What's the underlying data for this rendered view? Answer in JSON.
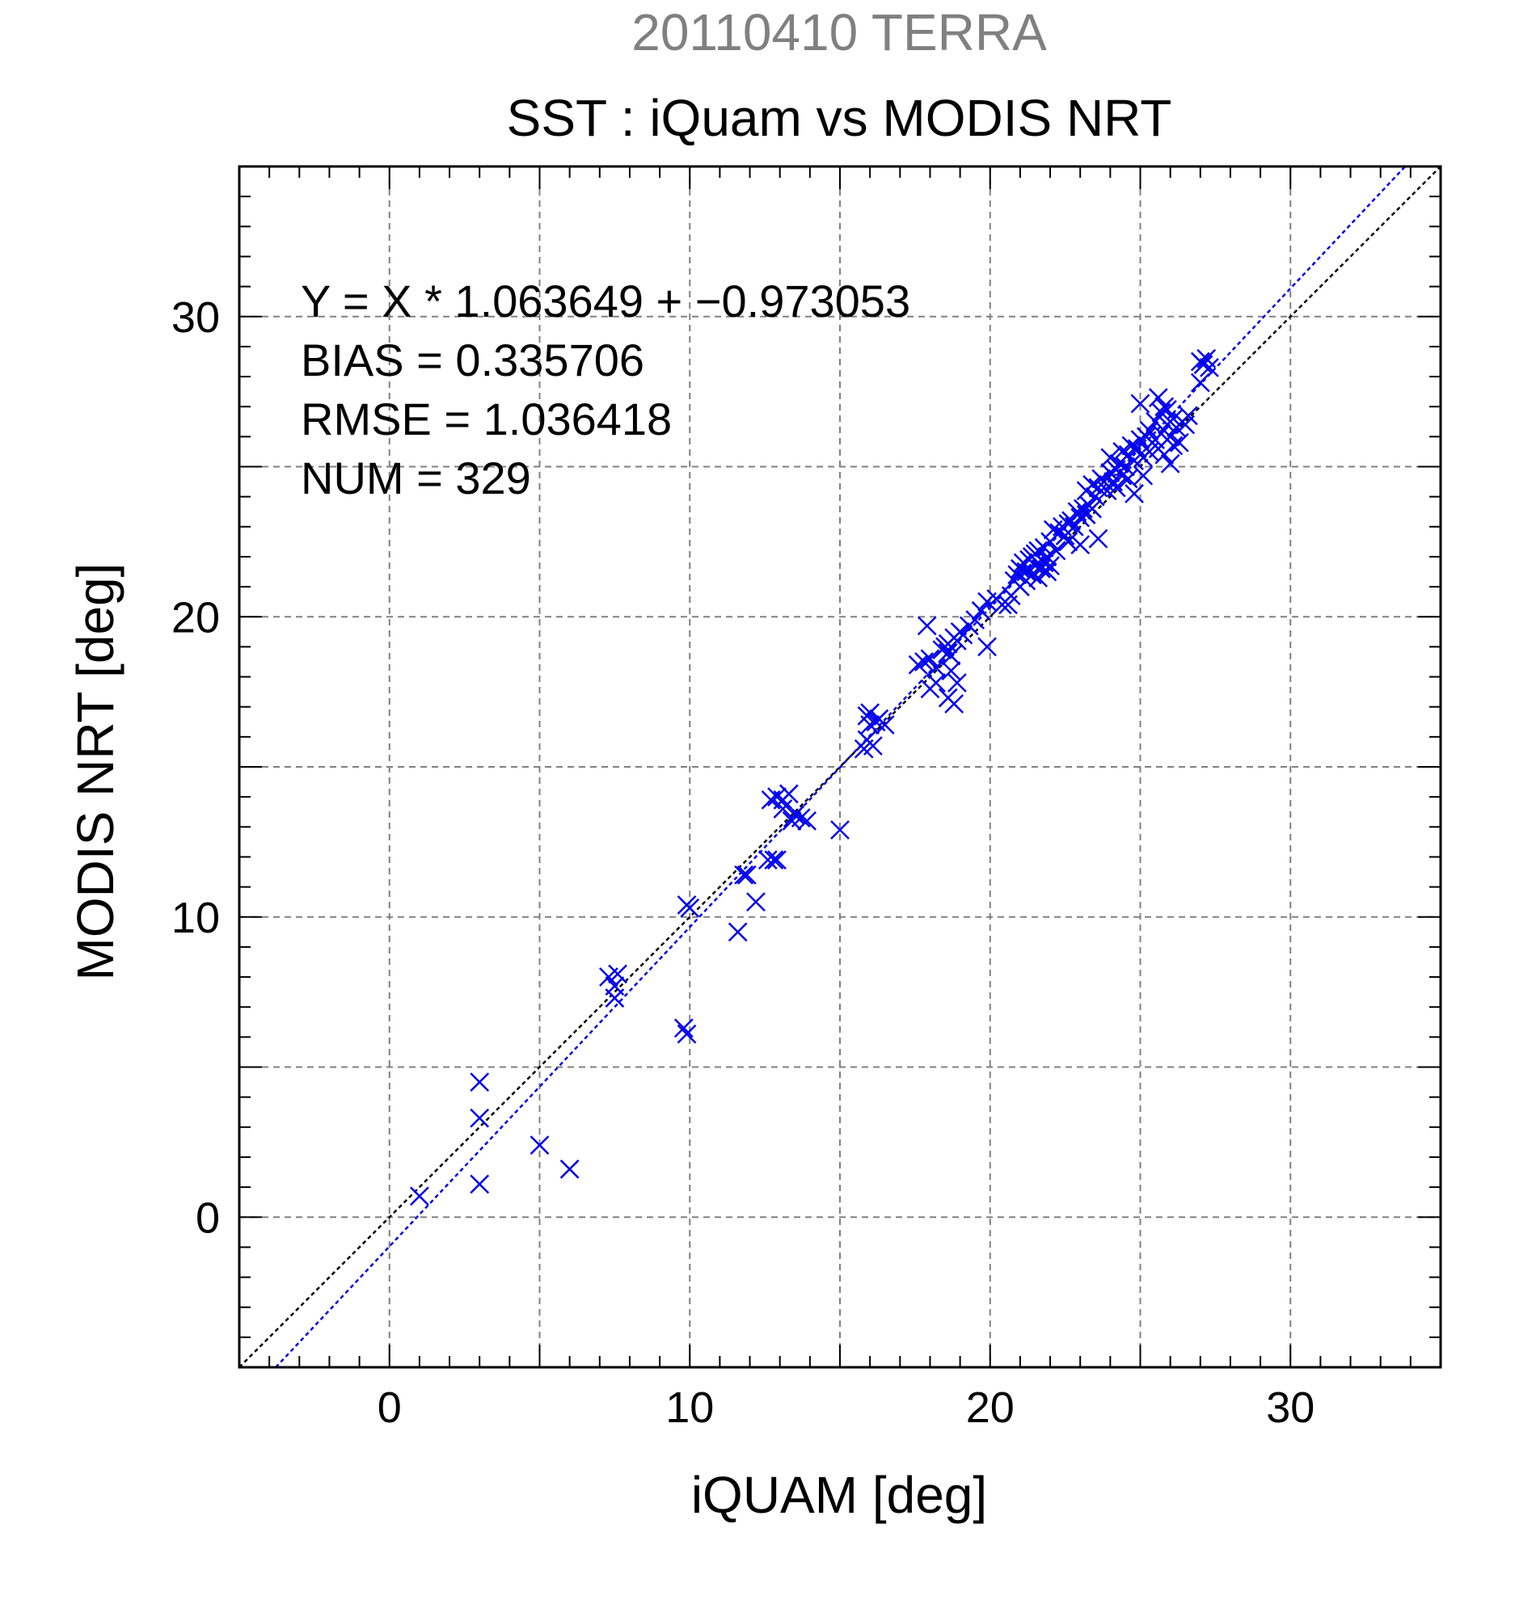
{
  "chart_data": {
    "type": "scatter",
    "supertitle": "20110410 TERRA",
    "title": "SST : iQuam vs MODIS NRT",
    "xlabel": "iQUAM [deg]",
    "ylabel": "MODIS NRT [deg]",
    "xlim": [
      -5,
      35
    ],
    "ylim": [
      -5,
      35
    ],
    "xticks": [
      0,
      10,
      20,
      30
    ],
    "yticks": [
      0,
      10,
      20,
      30
    ],
    "minor_step": 1,
    "grid_step": 5,
    "grid": true,
    "marker": "x",
    "colors": {
      "points": "#0000ee",
      "fit_line": "#0000ee",
      "one_to_one_line": "#000000",
      "supertitle": "#808080",
      "grid": "#808080"
    },
    "stats": [
      "Y = X * 1.063649 + −0.973053",
      "BIAS = 0.335706",
      "RMSE = 1.036418",
      "NUM = 329"
    ],
    "fit": {
      "slope": 1.063649,
      "intercept": -0.973053
    },
    "points": [
      [
        1.0,
        0.7
      ],
      [
        3.0,
        4.5
      ],
      [
        3.0,
        3.3
      ],
      [
        3.0,
        1.1
      ],
      [
        5.0,
        2.4
      ],
      [
        6.0,
        1.6
      ],
      [
        7.3,
        8.0
      ],
      [
        7.6,
        8.1
      ],
      [
        7.5,
        7.7
      ],
      [
        7.5,
        7.3
      ],
      [
        9.8,
        6.3
      ],
      [
        9.9,
        6.1
      ],
      [
        9.9,
        10.4
      ],
      [
        10.0,
        10.3
      ],
      [
        11.6,
        9.5
      ],
      [
        11.8,
        11.4
      ],
      [
        11.9,
        11.4
      ],
      [
        12.2,
        10.5
      ],
      [
        12.6,
        11.9
      ],
      [
        12.8,
        11.9
      ],
      [
        12.9,
        11.9
      ],
      [
        12.7,
        13.9
      ],
      [
        12.9,
        14.0
      ],
      [
        13.1,
        13.9
      ],
      [
        13.3,
        14.1
      ],
      [
        13.1,
        13.6
      ],
      [
        13.5,
        13.4
      ],
      [
        13.4,
        13.2
      ],
      [
        13.7,
        13.3
      ],
      [
        13.9,
        13.2
      ],
      [
        15.0,
        12.9
      ],
      [
        15.9,
        16.7
      ],
      [
        16.0,
        16.8
      ],
      [
        16.0,
        16.4
      ],
      [
        16.2,
        16.5
      ],
      [
        16.3,
        16.6
      ],
      [
        16.5,
        16.4
      ],
      [
        15.9,
        15.9
      ],
      [
        15.8,
        15.6
      ],
      [
        16.1,
        15.7
      ],
      [
        17.6,
        18.4
      ],
      [
        17.8,
        18.5
      ],
      [
        17.9,
        19.7
      ],
      [
        18.0,
        18.6
      ],
      [
        18.0,
        17.6
      ],
      [
        18.2,
        18.3
      ],
      [
        18.2,
        17.8
      ],
      [
        18.4,
        18.9
      ],
      [
        18.5,
        19.0
      ],
      [
        18.6,
        19.1
      ],
      [
        18.6,
        18.8
      ],
      [
        18.7,
        18.7
      ],
      [
        18.7,
        18.2
      ],
      [
        18.6,
        17.3
      ],
      [
        18.8,
        17.1
      ],
      [
        18.8,
        19.3
      ],
      [
        18.9,
        19.2
      ],
      [
        18.9,
        17.8
      ],
      [
        19.0,
        19.5
      ],
      [
        19.1,
        19.4
      ],
      [
        19.3,
        19.7
      ],
      [
        19.5,
        19.9
      ],
      [
        19.7,
        20.2
      ],
      [
        19.9,
        20.5
      ],
      [
        19.9,
        19.0
      ],
      [
        20.2,
        20.6
      ],
      [
        20.4,
        20.4
      ],
      [
        20.6,
        20.4
      ],
      [
        20.7,
        20.7
      ],
      [
        20.8,
        21.2
      ],
      [
        20.9,
        21.4
      ],
      [
        21.0,
        21.6
      ],
      [
        21.0,
        21.0
      ],
      [
        21.1,
        21.8
      ],
      [
        21.2,
        21.5
      ],
      [
        21.2,
        21.2
      ],
      [
        21.3,
        21.9
      ],
      [
        21.4,
        22.0
      ],
      [
        21.4,
        21.4
      ],
      [
        21.5,
        22.1
      ],
      [
        21.5,
        21.7
      ],
      [
        21.6,
        22.2
      ],
      [
        21.6,
        21.3
      ],
      [
        21.7,
        21.6
      ],
      [
        21.8,
        22.3
      ],
      [
        21.8,
        21.8
      ],
      [
        21.9,
        21.5
      ],
      [
        21.9,
        22.0
      ],
      [
        22.0,
        22.5
      ],
      [
        22.0,
        21.7
      ],
      [
        22.1,
        22.9
      ],
      [
        22.2,
        22.2
      ],
      [
        22.3,
        22.8
      ],
      [
        22.4,
        23.0
      ],
      [
        22.5,
        22.7
      ],
      [
        22.6,
        23.1
      ],
      [
        22.6,
        22.5
      ],
      [
        22.7,
        23.2
      ],
      [
        22.8,
        23.0
      ],
      [
        22.9,
        23.5
      ],
      [
        23.0,
        23.3
      ],
      [
        23.0,
        22.4
      ],
      [
        23.1,
        23.6
      ],
      [
        23.2,
        23.4
      ],
      [
        23.2,
        24.2
      ],
      [
        23.3,
        23.7
      ],
      [
        23.4,
        23.6
      ],
      [
        23.4,
        24.4
      ],
      [
        23.5,
        24.0
      ],
      [
        23.6,
        24.3
      ],
      [
        23.6,
        22.6
      ],
      [
        23.7,
        24.6
      ],
      [
        23.8,
        24.5
      ],
      [
        23.9,
        24.2
      ],
      [
        24.0,
        24.8
      ],
      [
        24.0,
        25.3
      ],
      [
        24.1,
        24.5
      ],
      [
        24.2,
        24.9
      ],
      [
        24.2,
        24.3
      ],
      [
        24.3,
        25.1
      ],
      [
        24.4,
        25.5
      ],
      [
        24.4,
        24.7
      ],
      [
        24.5,
        25.0
      ],
      [
        24.6,
        25.4
      ],
      [
        24.6,
        24.6
      ],
      [
        24.7,
        25.7
      ],
      [
        24.8,
        25.2
      ],
      [
        24.8,
        24.1
      ],
      [
        24.9,
        25.6
      ],
      [
        25.0,
        25.9
      ],
      [
        25.0,
        27.1
      ],
      [
        25.1,
        25.3
      ],
      [
        25.1,
        24.7
      ],
      [
        25.2,
        26.0
      ],
      [
        25.3,
        25.5
      ],
      [
        25.3,
        26.2
      ],
      [
        25.4,
        25.8
      ],
      [
        25.5,
        26.5
      ],
      [
        25.5,
        25.9
      ],
      [
        25.6,
        27.3
      ],
      [
        25.6,
        25.6
      ],
      [
        25.7,
        26.8
      ],
      [
        25.7,
        26.1
      ],
      [
        25.8,
        27.0
      ],
      [
        25.8,
        25.4
      ],
      [
        25.9,
        26.4
      ],
      [
        25.9,
        26.9
      ],
      [
        26.0,
        26.0
      ],
      [
        26.0,
        25.1
      ],
      [
        26.1,
        26.6
      ],
      [
        26.1,
        25.7
      ],
      [
        26.2,
        26.3
      ],
      [
        26.3,
        25.8
      ],
      [
        26.4,
        26.5
      ],
      [
        26.5,
        26.4
      ],
      [
        26.6,
        26.7
      ],
      [
        27.0,
        28.5
      ],
      [
        27.1,
        28.4
      ],
      [
        27.2,
        28.6
      ],
      [
        27.3,
        28.3
      ],
      [
        27.0,
        27.8
      ]
    ]
  }
}
